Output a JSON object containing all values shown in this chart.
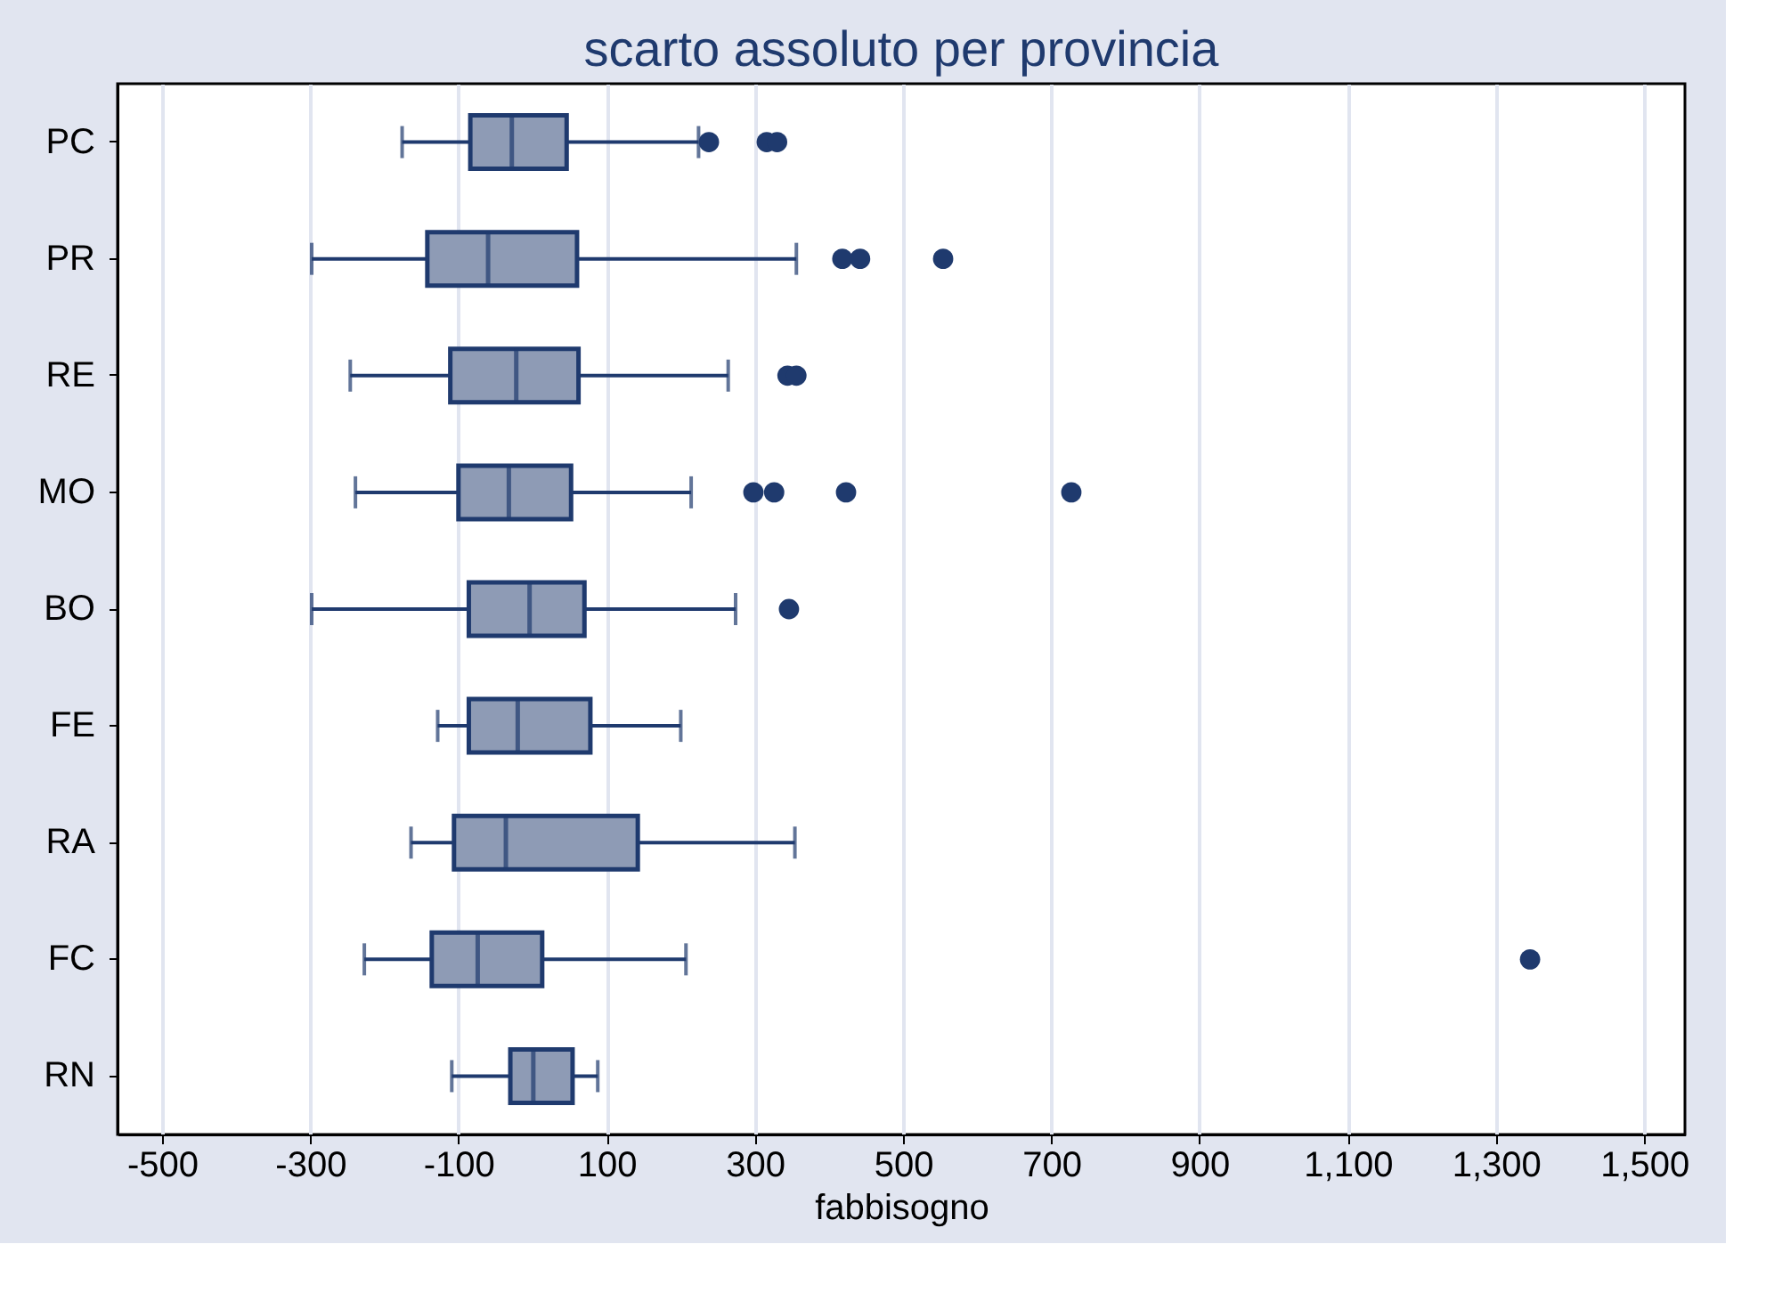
{
  "chart_data": {
    "type": "box",
    "title": "scarto assoluto per provincia",
    "xlabel": "fabbisogno",
    "orientation": "horizontal",
    "grid": "x",
    "color": "#8e9bb5",
    "categories": [
      "PC",
      "PR",
      "RE",
      "MO",
      "BO",
      "FE",
      "RA",
      "FC",
      "RN"
    ],
    "boxes": [
      {
        "low": -176,
        "q1": -84,
        "median": -28,
        "q3": 46,
        "high": 224,
        "outliers": [
          238,
          316,
          330
        ]
      },
      {
        "low": -298,
        "q1": -142,
        "median": -60,
        "q3": 60,
        "high": 356,
        "outliers": [
          418,
          442,
          554
        ]
      },
      {
        "low": -246,
        "q1": -111,
        "median": -22,
        "q3": 62,
        "high": 264,
        "outliers": [
          344,
          356
        ]
      },
      {
        "low": -239,
        "q1": -100,
        "median": -32,
        "q3": 52,
        "high": 214,
        "outliers": [
          298,
          326,
          423,
          727
        ]
      },
      {
        "low": -298,
        "q1": -86,
        "median": -4,
        "q3": 70,
        "high": 274,
        "outliers": [
          346
        ]
      },
      {
        "low": -128,
        "q1": -86,
        "median": -20,
        "q3": 78,
        "high": 200
      },
      {
        "low": -164,
        "q1": -106,
        "median": -36,
        "q3": 142,
        "high": 354
      },
      {
        "low": -227,
        "q1": -136,
        "median": -74,
        "q3": 13,
        "high": 207,
        "outliers": [
          1346
        ]
      },
      {
        "low": -109,
        "q1": -30,
        "median": 1,
        "q3": 54,
        "high": 88
      }
    ],
    "xlim": [
      -560,
      1555
    ],
    "xticks": [
      -500,
      -300,
      -100,
      100,
      300,
      500,
      700,
      900,
      {
        "value": 1100,
        "label": "1,100"
      },
      {
        "value": 1300,
        "label": "1,300"
      },
      {
        "value": 1500,
        "label": "1,500"
      }
    ]
  }
}
